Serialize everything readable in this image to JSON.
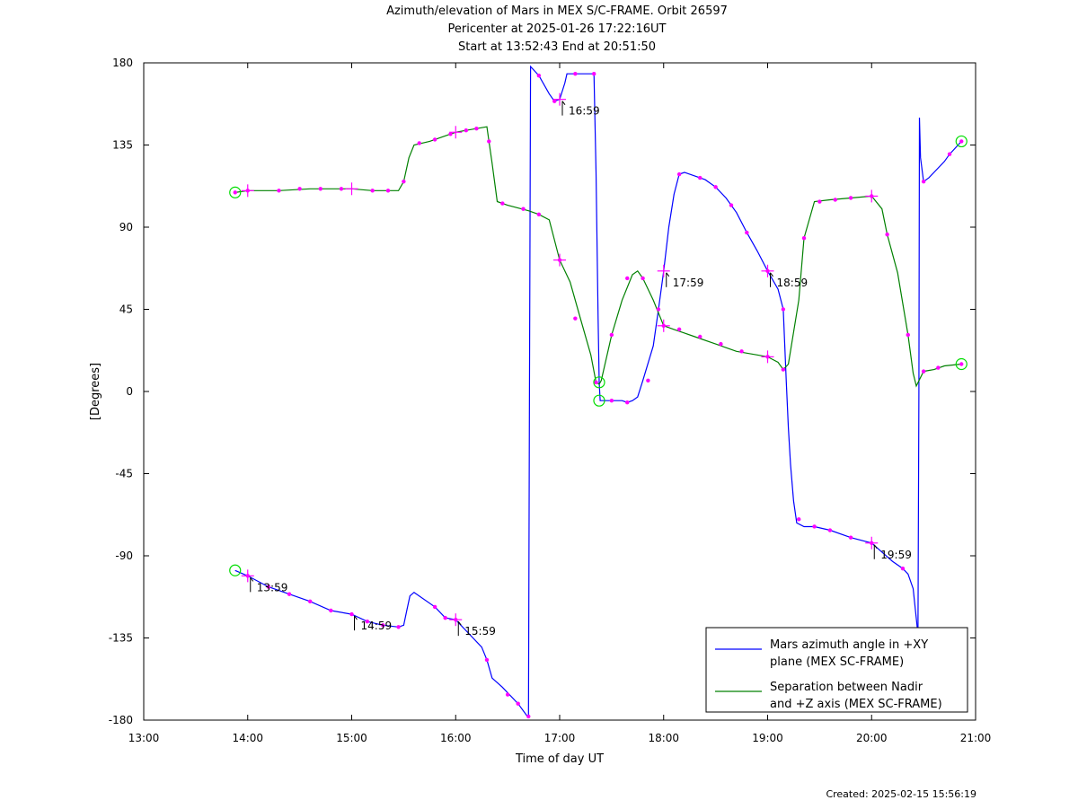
{
  "title_lines": [
    "Azimuth/elevation of Mars in MEX S/C-FRAME.  Orbit 26597",
    "Pericenter at 2025-01-26 17:22:16UT",
    "Start at 13:52:43 End at 20:51:50"
  ],
  "footer": "Created: 2025-02-15 15:56:19",
  "chart_data": {
    "type": "line",
    "xlabel": "Time of day UT",
    "ylabel": "[Degrees]",
    "xlim": [
      13.0,
      21.0
    ],
    "ylim": [
      -180,
      180
    ],
    "x_ticks": [
      13,
      14,
      15,
      16,
      17,
      18,
      19,
      20,
      21
    ],
    "x_tick_labels": [
      "13:00",
      "14:00",
      "15:00",
      "16:00",
      "17:00",
      "18:00",
      "19:00",
      "20:00",
      "21:00"
    ],
    "y_ticks": [
      180,
      135,
      90,
      45,
      0,
      -45,
      -90,
      -135,
      -180
    ],
    "y_tick_labels": [
      "180",
      "135",
      "90",
      "45",
      "0",
      "-45",
      "-90",
      "-135",
      "-180"
    ],
    "legend_position": "bottom-right",
    "series": [
      {
        "name": "Mars azimuth angle in +XY plane (MEX SC-FRAME)",
        "legend_lines": [
          "Mars azimuth angle in +XY",
          "plane (MEX SC-FRAME)"
        ],
        "color": "#0000ff",
        "segments": [
          [
            [
              13.879,
              -98
            ],
            [
              14.0,
              -101
            ],
            [
              14.2,
              -107
            ],
            [
              14.4,
              -111
            ],
            [
              14.6,
              -115
            ],
            [
              14.8,
              -120
            ],
            [
              15.0,
              -122
            ],
            [
              15.15,
              -126
            ],
            [
              15.3,
              -128
            ],
            [
              15.45,
              -129
            ],
            [
              15.5,
              -128
            ],
            [
              15.53,
              -120
            ],
            [
              15.56,
              -112
            ],
            [
              15.6,
              -110
            ],
            [
              15.8,
              -118
            ],
            [
              15.9,
              -124
            ],
            [
              16.0,
              -125
            ],
            [
              16.1,
              -131
            ],
            [
              16.25,
              -140
            ],
            [
              16.3,
              -147
            ],
            [
              16.35,
              -157
            ],
            [
              16.45,
              -162
            ],
            [
              16.6,
              -171
            ],
            [
              16.69,
              -178
            ],
            [
              16.7,
              -178
            ]
          ],
          [
            [
              16.7,
              -178
            ],
            [
              16.71,
              0
            ],
            [
              16.72,
              178
            ],
            [
              16.8,
              173
            ],
            [
              16.9,
              163
            ],
            [
              16.95,
              159
            ],
            [
              17.0,
              160
            ],
            [
              17.05,
              169
            ],
            [
              17.07,
              174
            ],
            [
              17.3,
              174
            ],
            [
              17.33,
              174
            ],
            [
              17.35,
              120
            ],
            [
              17.37,
              40
            ],
            [
              17.38,
              5
            ],
            [
              17.39,
              -5
            ],
            [
              17.5,
              -5
            ],
            [
              17.6,
              -5
            ],
            [
              17.65,
              -6
            ],
            [
              17.7,
              -5
            ],
            [
              17.75,
              -3
            ],
            [
              17.8,
              6
            ],
            [
              17.9,
              25
            ],
            [
              17.95,
              45
            ],
            [
              18.0,
              66
            ],
            [
              18.05,
              90
            ],
            [
              18.1,
              108
            ],
            [
              18.15,
              119
            ],
            [
              18.2,
              120
            ],
            [
              18.4,
              116
            ],
            [
              18.5,
              112
            ],
            [
              18.6,
              106
            ],
            [
              18.7,
              98
            ],
            [
              18.8,
              87
            ],
            [
              18.9,
              77
            ],
            [
              19.0,
              66
            ],
            [
              19.1,
              56
            ],
            [
              19.15,
              45
            ],
            [
              19.18,
              5
            ],
            [
              19.2,
              -20
            ],
            [
              19.22,
              -40
            ],
            [
              19.25,
              -60
            ],
            [
              19.28,
              -72
            ],
            [
              19.35,
              -74
            ],
            [
              19.45,
              -74
            ],
            [
              19.6,
              -76
            ],
            [
              19.8,
              -80
            ],
            [
              20.0,
              -83
            ],
            [
              20.1,
              -88
            ],
            [
              20.2,
              -93
            ],
            [
              20.3,
              -97
            ],
            [
              20.35,
              -100
            ],
            [
              20.4,
              -108
            ],
            [
              20.44,
              -130
            ],
            [
              20.445,
              -140
            ]
          ],
          [
            [
              20.445,
              -140
            ],
            [
              20.455,
              0
            ],
            [
              20.46,
              150
            ],
            [
              20.47,
              128
            ],
            [
              20.5,
              115
            ],
            [
              20.55,
              117
            ],
            [
              20.6,
              120
            ],
            [
              20.7,
              126
            ],
            [
              20.75,
              130
            ],
            [
              20.864,
              137
            ]
          ]
        ],
        "markers": [
          [
            14.0,
            -101
          ],
          [
            16.0,
            -125
          ],
          [
            17.0,
            160
          ],
          [
            18.0,
            66
          ],
          [
            19.0,
            66
          ],
          [
            20.0,
            -83
          ]
        ],
        "time_labels": [
          {
            "x": 14.0,
            "y": -101,
            "label": "13:59"
          },
          {
            "x": 15.0,
            "y": -122,
            "label": "14:59"
          },
          {
            "x": 16.0,
            "y": -125,
            "label": "15:59"
          },
          {
            "x": 17.0,
            "y": 160,
            "label": "16:59"
          },
          {
            "x": 18.0,
            "y": 66,
            "label": "17:59"
          },
          {
            "x": 19.0,
            "y": 66,
            "label": "18:59"
          },
          {
            "x": 20.0,
            "y": -83,
            "label": "19:59"
          }
        ]
      },
      {
        "name": "Separation between Nadir and +Z axis (MEX SC-FRAME)",
        "legend_lines": [
          "Separation between Nadir",
          "and +Z axis (MEX SC-FRAME)"
        ],
        "color": "#008000",
        "segments": [
          [
            [
              13.879,
              109
            ],
            [
              14.0,
              110
            ],
            [
              14.3,
              110
            ],
            [
              14.6,
              111
            ],
            [
              14.9,
              111
            ],
            [
              15.0,
              111
            ],
            [
              15.2,
              110
            ],
            [
              15.45,
              110
            ],
            [
              15.5,
              115
            ],
            [
              15.55,
              128
            ],
            [
              15.6,
              135
            ],
            [
              15.75,
              137
            ],
            [
              15.9,
              140
            ],
            [
              16.0,
              142
            ],
            [
              16.1,
              143
            ],
            [
              16.2,
              144
            ],
            [
              16.3,
              145
            ],
            [
              16.32,
              137
            ],
            [
              16.35,
              125
            ],
            [
              16.4,
              104
            ],
            [
              16.5,
              102
            ],
            [
              16.7,
              99
            ],
            [
              16.8,
              97
            ],
            [
              16.9,
              94
            ],
            [
              17.0,
              72
            ],
            [
              17.1,
              60
            ],
            [
              17.2,
              40
            ],
            [
              17.3,
              20
            ],
            [
              17.35,
              5
            ],
            [
              17.38,
              4
            ],
            [
              17.4,
              6
            ],
            [
              17.5,
              31
            ],
            [
              17.6,
              50
            ],
            [
              17.7,
              64
            ],
            [
              17.75,
              66
            ],
            [
              17.8,
              62
            ],
            [
              17.9,
              50
            ],
            [
              18.0,
              36
            ],
            [
              18.1,
              34
            ],
            [
              18.2,
              32
            ],
            [
              18.3,
              30
            ],
            [
              18.5,
              26
            ],
            [
              18.7,
              22
            ],
            [
              18.9,
              20
            ],
            [
              19.0,
              19
            ],
            [
              19.1,
              16
            ],
            [
              19.15,
              12
            ],
            [
              19.2,
              15
            ],
            [
              19.3,
              50
            ],
            [
              19.35,
              84
            ],
            [
              19.45,
              104
            ],
            [
              19.6,
              105
            ],
            [
              19.8,
              106
            ],
            [
              20.0,
              107
            ],
            [
              20.1,
              100
            ],
            [
              20.15,
              86
            ],
            [
              20.25,
              65
            ],
            [
              20.35,
              31
            ],
            [
              20.4,
              10
            ],
            [
              20.43,
              3
            ],
            [
              20.5,
              11
            ],
            [
              20.6,
              12
            ],
            [
              20.7,
              14
            ],
            [
              20.864,
              15
            ]
          ]
        ],
        "markers": [
          [
            14.0,
            110
          ],
          [
            15.0,
            111
          ],
          [
            16.0,
            142
          ],
          [
            17.0,
            72
          ],
          [
            18.0,
            36
          ],
          [
            19.0,
            19
          ],
          [
            20.0,
            107
          ]
        ]
      }
    ],
    "dots": [
      [
        14.0,
        -101
      ],
      [
        14.2,
        -107
      ],
      [
        14.4,
        -111
      ],
      [
        14.6,
        -115
      ],
      [
        14.8,
        -120
      ],
      [
        15.0,
        -122
      ],
      [
        15.15,
        -126
      ],
      [
        15.3,
        -128
      ],
      [
        15.45,
        -129
      ],
      [
        15.8,
        -118
      ],
      [
        15.9,
        -124
      ],
      [
        16.0,
        -125
      ],
      [
        16.3,
        -147
      ],
      [
        16.5,
        -166
      ],
      [
        16.6,
        -171
      ],
      [
        16.7,
        -178
      ],
      [
        16.8,
        173
      ],
      [
        16.95,
        159
      ],
      [
        17.15,
        174
      ],
      [
        17.33,
        174
      ],
      [
        17.5,
        -5
      ],
      [
        17.65,
        -6
      ],
      [
        17.85,
        6
      ],
      [
        17.95,
        45
      ],
      [
        18.15,
        119
      ],
      [
        18.35,
        117
      ],
      [
        18.5,
        112
      ],
      [
        18.65,
        102
      ],
      [
        18.8,
        87
      ],
      [
        19.0,
        66
      ],
      [
        19.15,
        45
      ],
      [
        19.3,
        -70
      ],
      [
        19.45,
        -74
      ],
      [
        19.6,
        -76
      ],
      [
        19.8,
        -80
      ],
      [
        20.0,
        -83
      ],
      [
        20.3,
        -97
      ],
      [
        20.5,
        115
      ],
      [
        20.75,
        130
      ],
      [
        20.864,
        137
      ],
      [
        13.879,
        109
      ],
      [
        14.0,
        110
      ],
      [
        14.3,
        110
      ],
      [
        14.5,
        111
      ],
      [
        14.7,
        111
      ],
      [
        14.9,
        111
      ],
      [
        15.2,
        110
      ],
      [
        15.35,
        110
      ],
      [
        15.5,
        115
      ],
      [
        15.65,
        136
      ],
      [
        15.8,
        138
      ],
      [
        15.95,
        141
      ],
      [
        16.1,
        143
      ],
      [
        16.2,
        144
      ],
      [
        16.32,
        137
      ],
      [
        16.45,
        103
      ],
      [
        16.65,
        100
      ],
      [
        16.8,
        97
      ],
      [
        17.0,
        72
      ],
      [
        17.15,
        40
      ],
      [
        17.35,
        5
      ],
      [
        17.5,
        31
      ],
      [
        17.65,
        62
      ],
      [
        17.8,
        62
      ],
      [
        18.0,
        36
      ],
      [
        18.15,
        34
      ],
      [
        18.35,
        30
      ],
      [
        18.55,
        26
      ],
      [
        18.75,
        22
      ],
      [
        19.0,
        19
      ],
      [
        19.15,
        12
      ],
      [
        19.35,
        84
      ],
      [
        19.5,
        104
      ],
      [
        19.65,
        105
      ],
      [
        19.8,
        106
      ],
      [
        20.0,
        107
      ],
      [
        20.15,
        86
      ],
      [
        20.35,
        31
      ],
      [
        20.5,
        11
      ],
      [
        20.64,
        13
      ],
      [
        20.864,
        15
      ]
    ],
    "endpoint_circles": [
      [
        13.879,
        -98
      ],
      [
        13.879,
        109
      ],
      [
        17.38,
        5
      ],
      [
        17.38,
        -5
      ],
      [
        20.864,
        137
      ],
      [
        20.864,
        15
      ]
    ]
  }
}
